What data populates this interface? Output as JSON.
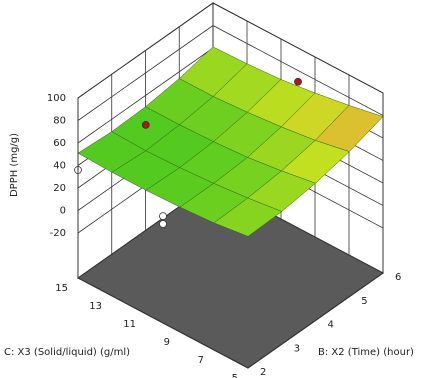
{
  "chart_data": {
    "type": "surface",
    "z_label": "DPPH (mg/g)",
    "x3_label": "C: X3 (Solid/liquid) (g/ml)",
    "x2_label": "B: X2 (Time) (hour)",
    "x2": [
      2,
      3,
      4,
      5,
      6
    ],
    "x3": [
      5,
      7,
      9,
      11,
      13,
      15
    ],
    "z": [
      [
        57,
        58,
        62,
        69,
        79
      ],
      [
        53,
        54,
        57,
        63,
        73
      ],
      [
        51,
        51,
        53,
        59,
        68
      ],
      [
        50,
        49,
        51,
        56,
        64
      ],
      [
        50,
        48,
        50,
        54,
        62
      ],
      [
        51,
        49,
        50,
        54,
        61
      ]
    ],
    "x2lim": [
      2,
      6
    ],
    "x3lim": [
      5,
      15
    ],
    "zlim": [
      -60,
      100
    ],
    "x2ticks": [
      2,
      3,
      4,
      5,
      6
    ],
    "x3ticks": [
      15,
      13,
      11,
      9,
      7,
      5
    ],
    "zticks": [
      100,
      80,
      60,
      40,
      20,
      0,
      -20
    ],
    "points": {
      "x2": [
        3,
        6,
        2,
        2,
        2
      ],
      "x3": [
        13,
        10,
        15,
        10,
        10
      ],
      "z": [
        71,
        70,
        36,
        35,
        28
      ],
      "colors": [
        "#b01818",
        "#b01818",
        "#ffffff",
        "#ffffff",
        "#ffffff"
      ]
    },
    "colors": [
      "#48c820",
      "#c8e020",
      "#f0a040"
    ],
    "grid": true
  }
}
